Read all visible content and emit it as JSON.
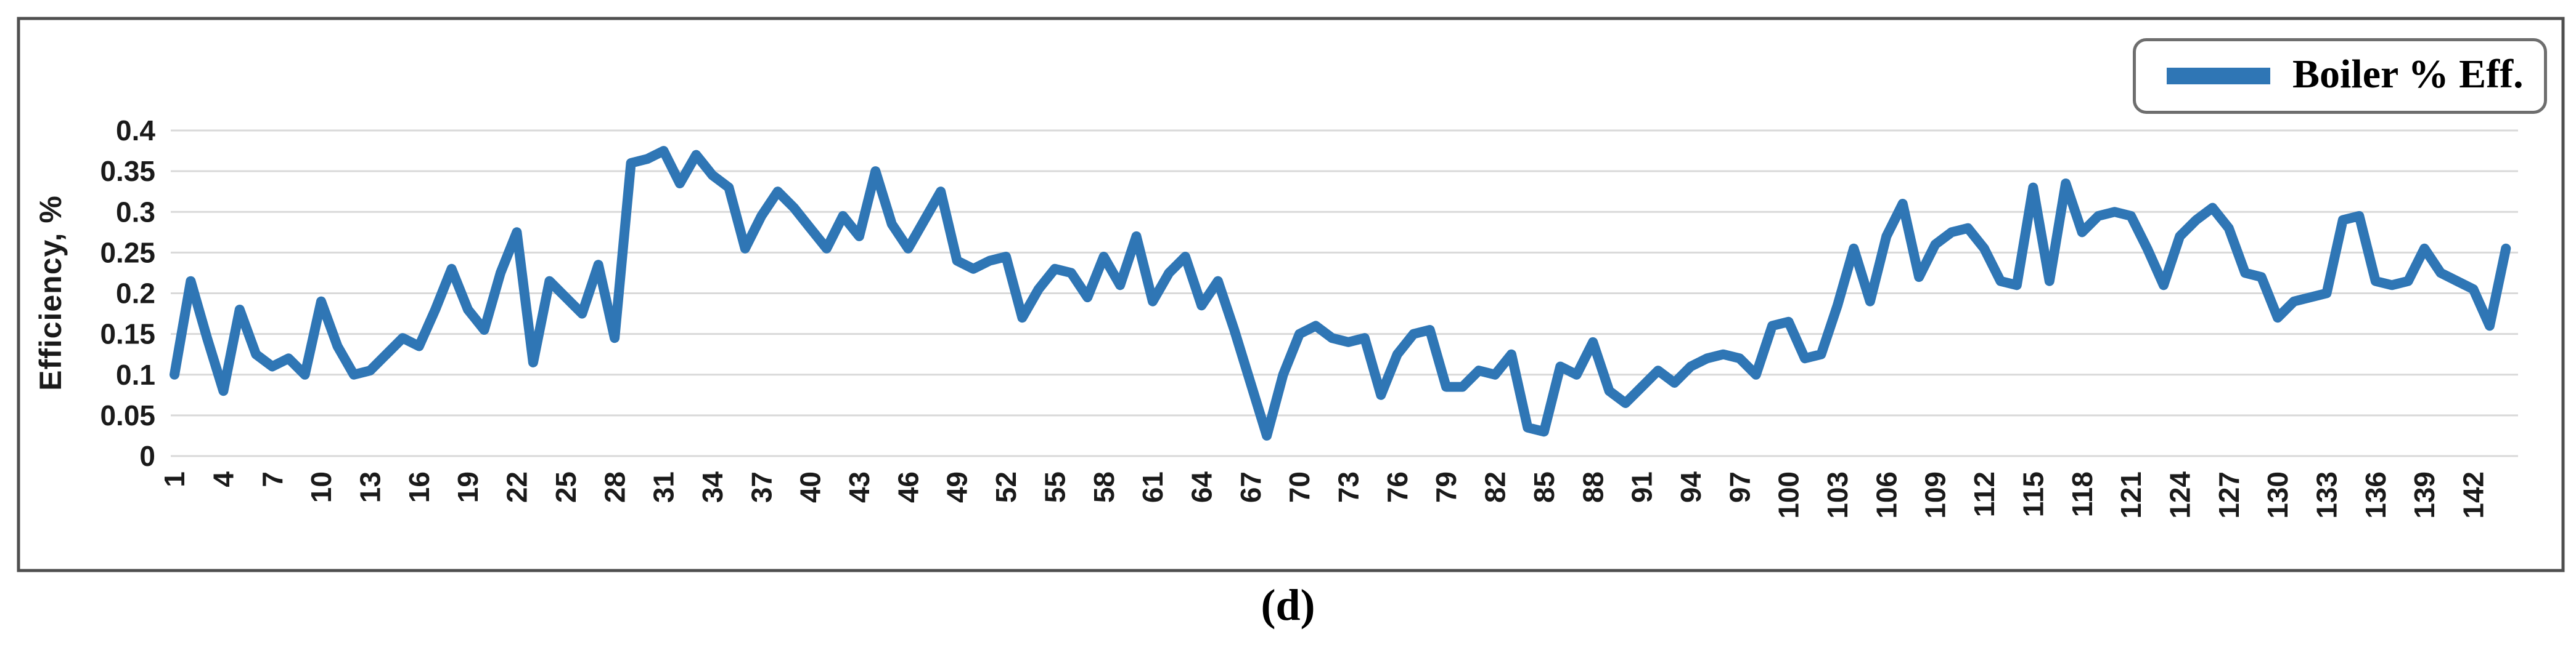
{
  "figure": {
    "caption": "(d)"
  },
  "legend": {
    "label": "Boiler % Eff."
  },
  "chart_data": {
    "type": "line",
    "title": "",
    "xlabel": "",
    "ylabel": "Efficiency, %",
    "ylim": [
      0,
      0.4
    ],
    "yticks": [
      0.4,
      0.35,
      0.3,
      0.25,
      0.2,
      0.15,
      0.1,
      0.05,
      0
    ],
    "ytick_labels": [
      "0.4",
      "0.35",
      "0.3",
      "0.25",
      "0.2",
      "0.15",
      "0.1",
      "0.05",
      "0"
    ],
    "xtick_labels": [
      "1",
      "4",
      "7",
      "10",
      "13",
      "16",
      "19",
      "22",
      "25",
      "28",
      "31",
      "34",
      "37",
      "40",
      "43",
      "46",
      "49",
      "52",
      "55",
      "58",
      "61",
      "64",
      "67",
      "70",
      "73",
      "76",
      "79",
      "82",
      "85",
      "88",
      "91",
      "94",
      "97",
      "100",
      "103",
      "106",
      "109",
      "112",
      "115",
      "118",
      "121",
      "124",
      "127",
      "130",
      "133",
      "136",
      "139",
      "142"
    ],
    "xtick_step": 3,
    "grid": true,
    "legend_position": "top-right",
    "series": [
      {
        "name": "Boiler % Eff.",
        "color": "#2F76B5",
        "x_start": 1,
        "values": [
          0.1,
          0.215,
          0.145,
          0.08,
          0.18,
          0.125,
          0.11,
          0.12,
          0.1,
          0.19,
          0.135,
          0.1,
          0.105,
          0.125,
          0.145,
          0.135,
          0.18,
          0.23,
          0.18,
          0.155,
          0.225,
          0.275,
          0.115,
          0.215,
          0.195,
          0.175,
          0.235,
          0.145,
          0.36,
          0.365,
          0.375,
          0.335,
          0.37,
          0.345,
          0.33,
          0.255,
          0.295,
          0.325,
          0.305,
          0.28,
          0.255,
          0.295,
          0.27,
          0.35,
          0.285,
          0.255,
          0.29,
          0.325,
          0.24,
          0.23,
          0.24,
          0.245,
          0.17,
          0.205,
          0.23,
          0.225,
          0.195,
          0.245,
          0.21,
          0.27,
          0.19,
          0.225,
          0.245,
          0.185,
          0.215,
          0.155,
          0.09,
          0.025,
          0.1,
          0.15,
          0.16,
          0.145,
          0.14,
          0.145,
          0.075,
          0.125,
          0.15,
          0.155,
          0.085,
          0.085,
          0.105,
          0.1,
          0.125,
          0.035,
          0.03,
          0.11,
          0.1,
          0.14,
          0.08,
          0.065,
          0.085,
          0.105,
          0.09,
          0.11,
          0.12,
          0.125,
          0.12,
          0.1,
          0.16,
          0.165,
          0.12,
          0.125,
          0.185,
          0.255,
          0.19,
          0.27,
          0.31,
          0.22,
          0.26,
          0.275,
          0.28,
          0.255,
          0.215,
          0.21,
          0.33,
          0.215,
          0.335,
          0.275,
          0.295,
          0.3,
          0.295,
          0.255,
          0.21,
          0.27,
          0.29,
          0.305,
          0.28,
          0.225,
          0.22,
          0.17,
          0.19,
          0.195,
          0.2,
          0.29,
          0.295,
          0.215,
          0.21,
          0.215,
          0.255,
          0.225,
          0.215,
          0.205,
          0.16,
          0.255
        ]
      }
    ]
  },
  "style": {
    "line_color": "#2F76B5",
    "gridline_color": "#D9D9D9",
    "frame_color": "#4F4F4F",
    "legend_border_color": "#6E6E6E",
    "tick_text_color": "#1a1a1a"
  }
}
